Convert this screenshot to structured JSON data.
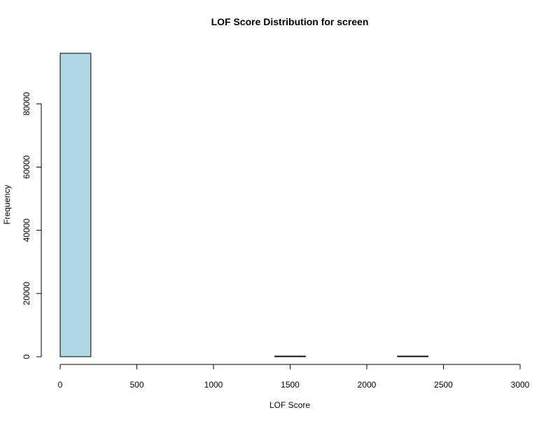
{
  "chart_data": {
    "type": "bar",
    "title": "LOF Score Distribution for screen",
    "xlabel": "LOF Score",
    "ylabel": "Frequency",
    "bin_edges": [
      0,
      200,
      400,
      600,
      800,
      1000,
      1200,
      1400,
      1600,
      1800,
      2000,
      2200,
      2400,
      2600,
      2800,
      3000
    ],
    "values": [
      96000,
      0,
      0,
      0,
      0,
      0,
      0,
      200,
      0,
      0,
      0,
      200,
      0,
      0,
      0
    ],
    "xlim": [
      0,
      3000
    ],
    "ylim": [
      0,
      96000
    ],
    "x_ticks": [
      0,
      500,
      1000,
      1500,
      2000,
      2500,
      3000
    ],
    "y_ticks": [
      0,
      20000,
      40000,
      60000,
      80000
    ],
    "colors": {
      "bar_fill": "#ADD8E6",
      "bar_stroke": "#000000",
      "axis": "#000000"
    },
    "grid": false,
    "legend": "none"
  }
}
